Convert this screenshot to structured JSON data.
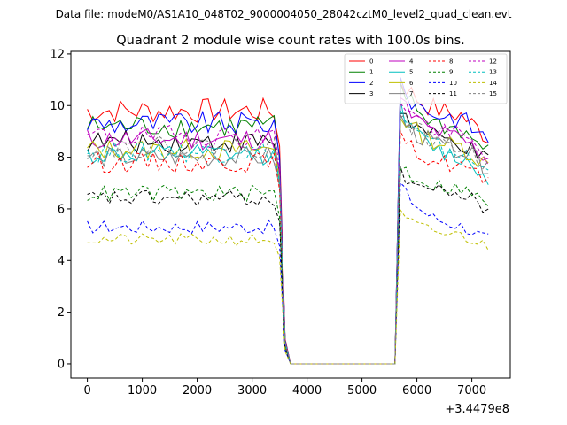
{
  "figure": {
    "suptitle": "Data file: modeM0/AS1A10_048T02_9000004050_28042cztM0_level2_quad_clean.evt"
  },
  "chart_data": {
    "type": "line",
    "title": "Quadrant 2 module wise count rates with 100.0s bins.",
    "xlabel": "",
    "ylabel": "",
    "x_offset_label": "+3.4479e8",
    "xlim": [
      -300,
      7700
    ],
    "ylim": [
      -0.55,
      12.1
    ],
    "xticks": [
      0,
      1000,
      2000,
      3000,
      4000,
      5000,
      6000,
      7000
    ],
    "xtick_labels": [
      "0",
      "1000",
      "2000",
      "3000",
      "4000",
      "5000",
      "6000",
      "7000"
    ],
    "yticks": [
      0,
      2,
      4,
      6,
      8,
      10,
      12
    ],
    "ytick_labels": [
      "0",
      "2",
      "4",
      "6",
      "8",
      "10",
      "12"
    ],
    "grid": false,
    "legend_position": "top-right",
    "legend_columns": 4,
    "bin_width": 100,
    "x_start": 0,
    "gap_start": 3600,
    "gap_end": 5600,
    "x_end": 7300,
    "series": [
      {
        "name": "0",
        "color": "#ff0000",
        "dash": "solid",
        "pre_level": 9.8,
        "post_level": 9.5,
        "post_peak": 11.4
      },
      {
        "name": "1",
        "color": "#008000",
        "dash": "solid",
        "pre_level": 9.2,
        "post_level": 8.9,
        "post_peak": 11.2
      },
      {
        "name": "2",
        "color": "#0000ff",
        "dash": "solid",
        "pre_level": 9.3,
        "post_level": 9.4,
        "post_peak": 11.0
      },
      {
        "name": "3",
        "color": "#000000",
        "dash": "solid",
        "pre_level": 8.6,
        "post_level": 8.4,
        "post_peak": 10.2
      },
      {
        "name": "4",
        "color": "#bf00bf",
        "dash": "solid",
        "pre_level": 8.7,
        "post_level": 8.6,
        "post_peak": 10.6
      },
      {
        "name": "5",
        "color": "#00bfbf",
        "dash": "solid",
        "pre_level": 8.1,
        "post_level": 7.8,
        "post_peak": 10.4
      },
      {
        "name": "6",
        "color": "#bfbf00",
        "dash": "solid",
        "pre_level": 8.3,
        "post_level": 8.3,
        "post_peak": 10.0
      },
      {
        "name": "7",
        "color": "#808080",
        "dash": "solid",
        "pre_level": 8.0,
        "post_level": 8.2,
        "post_peak": 9.9
      },
      {
        "name": "8",
        "color": "#ff0000",
        "dash": "dashed",
        "pre_level": 7.8,
        "post_level": 7.6,
        "post_peak": 9.0
      },
      {
        "name": "9",
        "color": "#008000",
        "dash": "dashed",
        "pre_level": 6.6,
        "post_level": 6.7,
        "post_peak": 7.9
      },
      {
        "name": "10",
        "color": "#0000ff",
        "dash": "dashed",
        "pre_level": 5.3,
        "post_level": 5.2,
        "post_peak": 7.4
      },
      {
        "name": "11",
        "color": "#000000",
        "dash": "dashed",
        "pre_level": 6.4,
        "post_level": 6.5,
        "post_peak": 7.6
      },
      {
        "name": "12",
        "color": "#bf00bf",
        "dash": "dashed",
        "pre_level": 8.8,
        "post_level": 8.7,
        "post_peak": 10.7
      },
      {
        "name": "13",
        "color": "#00bfbf",
        "dash": "dashed",
        "pre_level": 8.2,
        "post_level": 8.0,
        "post_peak": 10.2
      },
      {
        "name": "14",
        "color": "#bfbf00",
        "dash": "dashed",
        "pre_level": 4.8,
        "post_level": 4.9,
        "post_peak": 6.0
      },
      {
        "name": "15",
        "color": "#808080",
        "dash": "dashed",
        "pre_level": 8.4,
        "post_level": 8.3,
        "post_peak": 10.1
      }
    ]
  }
}
